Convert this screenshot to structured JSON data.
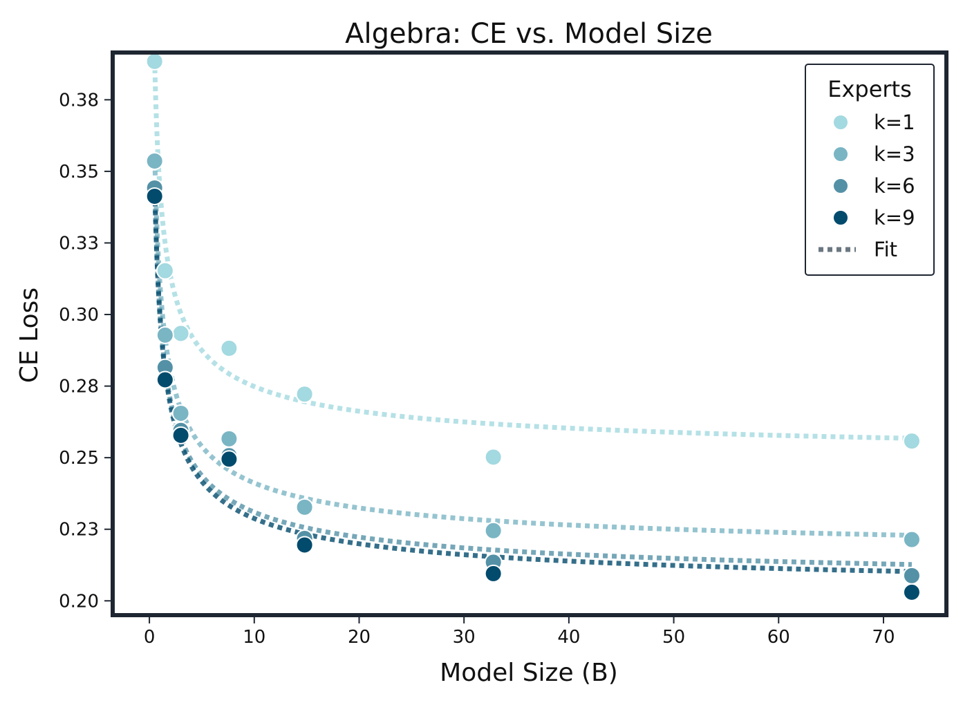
{
  "chart_data": {
    "type": "scatter",
    "title": "Algebra: CE vs. Model Size",
    "xlabel": "Model Size (B)",
    "ylabel": "CE Loss",
    "xlim": [
      -3.5,
      76.0
    ],
    "ylim": [
      0.195,
      0.3915
    ],
    "xticks": [
      0,
      10,
      20,
      30,
      40,
      50,
      60,
      70
    ],
    "xtick_labels": [
      "0",
      "10",
      "20",
      "30",
      "40",
      "50",
      "60",
      "70"
    ],
    "yticks": [
      0.2,
      0.225,
      0.25,
      0.275,
      0.3,
      0.325,
      0.35,
      0.375
    ],
    "ytick_labels": [
      "0.20",
      "0.23",
      "0.25",
      "0.28",
      "0.30",
      "0.33",
      "0.35",
      "0.38"
    ],
    "x": [
      0.5,
      1.5,
      3,
      7.6,
      14.8,
      32.8,
      72.7
    ],
    "legend": {
      "title": "Experts",
      "placement": "top-right",
      "fit_label": "Fit",
      "fit_color": "#6b7780"
    },
    "series": [
      {
        "name": "k=1",
        "color": "#a3d9e0",
        "values": [
          0.3884,
          0.3153,
          0.2934,
          0.2882,
          0.2722,
          0.2502,
          0.2558
        ],
        "fit": [
          0.3864,
          0.3254,
          0.3053,
          0.2836,
          0.2713,
          0.2595,
          0.2503
        ]
      },
      {
        "name": "k=3",
        "color": "#7ab5c4",
        "values": [
          0.3536,
          0.2928,
          0.2655,
          0.2566,
          0.2327,
          0.2245,
          0.2214
        ],
        "fit": [
          0.3536,
          0.294,
          0.271,
          0.2485,
          0.2364,
          0.2255,
          0.2186
        ]
      },
      {
        "name": "k=6",
        "color": "#5491a6",
        "values": [
          0.3442,
          0.2815,
          0.2595,
          0.2507,
          0.2218,
          0.2135,
          0.2088
        ],
        "fit": [
          0.3434,
          0.2838,
          0.2608,
          0.2383,
          0.2262,
          0.2153,
          0.2084
        ]
      },
      {
        "name": "k=9",
        "color": "#024b6d",
        "values": [
          0.3413,
          0.2772,
          0.2578,
          0.2495,
          0.2195,
          0.2095,
          0.203
        ],
        "fit": [
          0.343,
          0.282,
          0.2588,
          0.2362,
          0.224,
          0.213,
          0.206
        ]
      }
    ]
  }
}
